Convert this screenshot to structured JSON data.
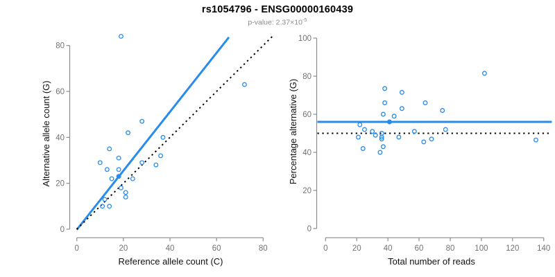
{
  "header": {
    "title": "rs1054796 - ENSG00000160439",
    "subtitle_prefix": "p-value: 2.37×10",
    "subtitle_exponent": "-5"
  },
  "colors": {
    "accent_blue": "#288CEB",
    "dotted_line_black": "#000000",
    "axis_line": "#8C8C8C",
    "tick_label": "#737373"
  },
  "chart_data": [
    {
      "type": "scatter",
      "title": "",
      "xlabel": "Reference allele count (C)",
      "ylabel": "Alternative allele count (G)",
      "xlim": [
        0,
        80
      ],
      "ylim": [
        0,
        84
      ],
      "xticks": [
        0,
        20,
        40,
        60,
        80
      ],
      "yticks": [
        0,
        20,
        40,
        60,
        80
      ],
      "grid": false,
      "points": [
        [
          19,
          84
        ],
        [
          72,
          63
        ],
        [
          28,
          47
        ],
        [
          22,
          42
        ],
        [
          37,
          40
        ],
        [
          14,
          35
        ],
        [
          36,
          32
        ],
        [
          18,
          31
        ],
        [
          10,
          29
        ],
        [
          28,
          29
        ],
        [
          34,
          28
        ],
        [
          18,
          26
        ],
        [
          13,
          26
        ],
        [
          24,
          22
        ],
        [
          15,
          22
        ],
        [
          19,
          18
        ],
        [
          21,
          16
        ],
        [
          21,
          14
        ],
        [
          12,
          13
        ],
        [
          11,
          10
        ],
        [
          14,
          10
        ]
      ],
      "highlight_point": [
        18,
        23
      ],
      "lines": [
        {
          "name": "regression",
          "style": "solid",
          "color": "#288CEB",
          "from": [
            0,
            -0.2
          ],
          "to": [
            65.3,
            83.6
          ]
        },
        {
          "name": "identity",
          "style": "dotted",
          "color": "#000000",
          "from": [
            0,
            0
          ],
          "to": [
            84,
            84
          ]
        }
      ]
    },
    {
      "type": "scatter",
      "title": "",
      "xlabel": "Total number of reads",
      "ylabel": "Percentage alternative (G)",
      "xlim": [
        0,
        140
      ],
      "ylim": [
        0,
        100
      ],
      "xticks": [
        0,
        20,
        40,
        60,
        80,
        100,
        120,
        140
      ],
      "yticks": [
        0,
        20,
        40,
        60,
        80,
        100
      ],
      "grid": false,
      "points": [
        [
          102,
          81.5
        ],
        [
          38,
          73.5
        ],
        [
          49,
          71.5
        ],
        [
          38,
          66
        ],
        [
          64,
          66
        ],
        [
          49,
          63
        ],
        [
          75,
          62
        ],
        [
          37,
          60
        ],
        [
          44,
          59
        ],
        [
          22,
          54.5
        ],
        [
          25,
          52
        ],
        [
          77,
          52
        ],
        [
          30,
          51
        ],
        [
          57,
          51
        ],
        [
          36,
          50
        ],
        [
          32,
          49
        ],
        [
          21,
          48
        ],
        [
          36,
          48
        ],
        [
          47,
          48
        ],
        [
          36,
          47
        ],
        [
          68,
          47
        ],
        [
          135,
          46.5
        ],
        [
          63,
          45.5
        ],
        [
          37,
          43
        ],
        [
          24,
          42
        ],
        [
          35,
          40
        ]
      ],
      "highlight_point": [
        41,
        56
      ],
      "lines": [
        {
          "name": "mean",
          "style": "solid",
          "color": "#288CEB",
          "horizontal_y": 56
        },
        {
          "name": "expected",
          "style": "dotted",
          "color": "#000000",
          "horizontal_y": 50
        }
      ]
    }
  ]
}
